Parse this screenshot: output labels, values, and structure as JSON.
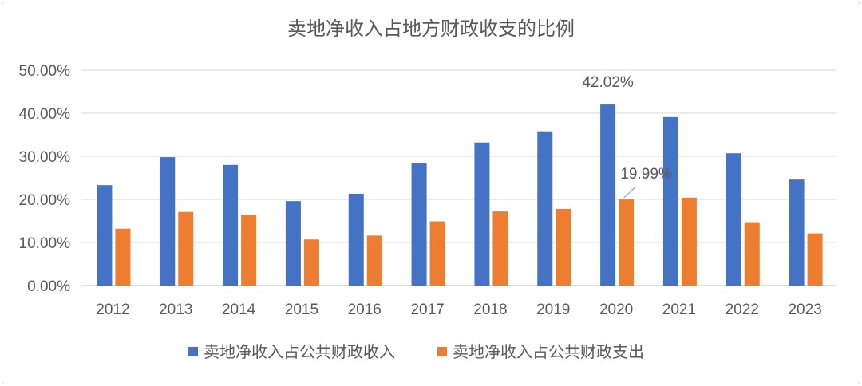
{
  "chart_data": {
    "type": "bar",
    "title": "卖地净收入占地方财政收支的比例",
    "categories": [
      "2012",
      "2013",
      "2014",
      "2015",
      "2016",
      "2017",
      "2018",
      "2019",
      "2020",
      "2021",
      "2022",
      "2023"
    ],
    "series": [
      {
        "name": "卖地净收入占公共财政收入",
        "color": "#4472c4",
        "values": [
          23.3,
          29.8,
          28.0,
          19.6,
          21.3,
          28.4,
          33.2,
          35.8,
          42.02,
          39.1,
          30.7,
          24.6
        ]
      },
      {
        "name": "卖地净收入占公共财政支出",
        "color": "#ed7d31",
        "values": [
          13.2,
          17.1,
          16.4,
          10.7,
          11.6,
          14.9,
          17.2,
          17.8,
          19.99,
          20.4,
          14.7,
          12.1
        ]
      }
    ],
    "y_ticks": [
      "0.00%",
      "10.00%",
      "20.00%",
      "30.00%",
      "40.00%",
      "50.00%"
    ],
    "ylim": [
      0,
      50
    ],
    "grid": true,
    "legend_position": "bottom",
    "data_labels": [
      {
        "series": 0,
        "category": "2020",
        "text": "42.02%"
      },
      {
        "series": 1,
        "category": "2020",
        "text": "19.99%"
      }
    ],
    "xlabel": "",
    "ylabel": ""
  }
}
